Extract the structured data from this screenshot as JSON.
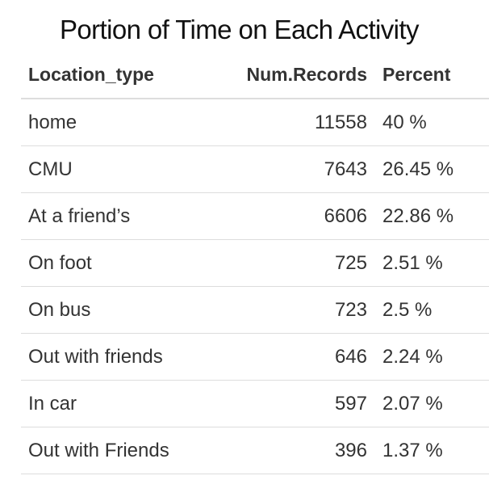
{
  "chart_data": {
    "type": "table",
    "title": "Portion of Time on Each Activity",
    "columns": [
      "Location_type",
      "Num.Records",
      "Percent"
    ],
    "rows": [
      [
        "home",
        "11558",
        "40 %"
      ],
      [
        "CMU",
        "7643",
        "26.45 %"
      ],
      [
        "At a friend’s",
        "6606",
        "22.86 %"
      ],
      [
        "On foot",
        "725",
        "2.51 %"
      ],
      [
        "On bus",
        "723",
        "2.5 %"
      ],
      [
        "Out with friends",
        "646",
        "2.24 %"
      ],
      [
        "In car",
        "597",
        "2.07 %"
      ],
      [
        "Out with Friends",
        "396",
        "1.37 %"
      ]
    ]
  }
}
